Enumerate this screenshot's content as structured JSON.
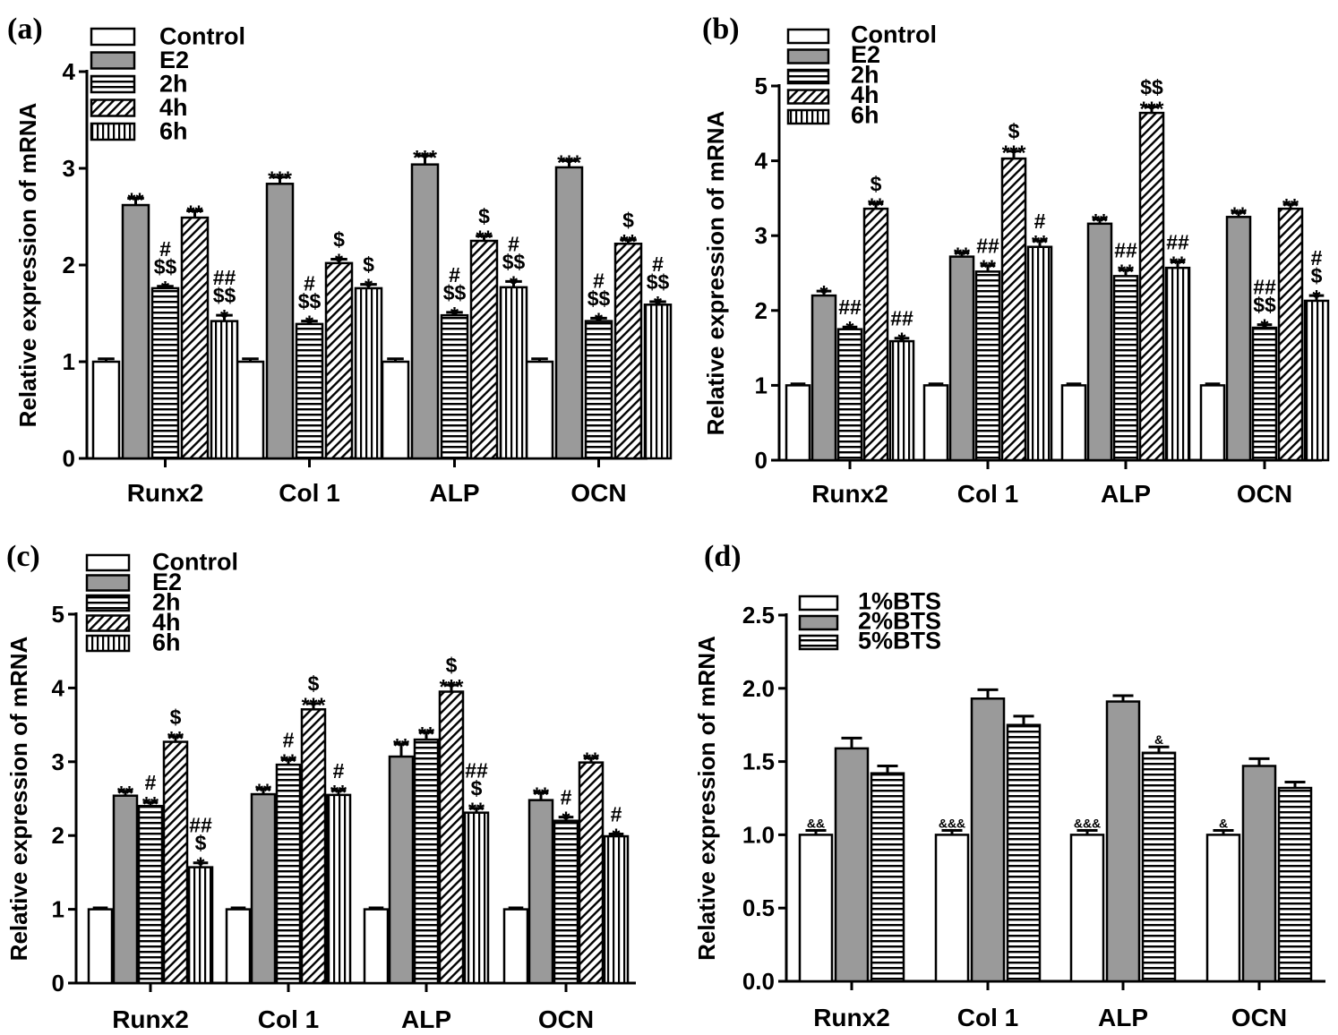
{
  "styles": {
    "Control": "white",
    "E2": "gray",
    "2h": "hlines",
    "4h": "diag",
    "6h": "vlines",
    "1%BTS": "white",
    "2%BTS": "gray",
    "5%BTS": "hlines"
  },
  "colors": {
    "gray": "#9a9a9a",
    "stroke": "#000000",
    "background": "#ffffff"
  },
  "chart_data": [
    {
      "panel": "(a)",
      "type": "bar",
      "ylabel": "Relative expression of mRNA",
      "ylim": [
        0,
        4
      ],
      "yticks": [
        "0",
        "1",
        "2",
        "3",
        "4"
      ],
      "categories": [
        "Runx2",
        "Col 1",
        "ALP",
        "OCN"
      ],
      "series": [
        {
          "name": "Control",
          "values": [
            1.0,
            1.0,
            1.0,
            1.0
          ],
          "errors": [
            0.03,
            0.03,
            0.03,
            0.03
          ],
          "annotations": [
            [],
            [],
            [],
            []
          ]
        },
        {
          "name": "E2",
          "values": [
            2.62,
            2.84,
            3.04,
            3.01
          ],
          "errors": [
            0.07,
            0.07,
            0.09,
            0.07
          ],
          "annotations": [
            [
              "**"
            ],
            [
              "***"
            ],
            [
              "***"
            ],
            [
              "***"
            ]
          ]
        },
        {
          "name": "2h",
          "values": [
            1.76,
            1.39,
            1.48,
            1.42
          ],
          "errors": [
            0.02,
            0.03,
            0.03,
            0.03
          ],
          "annotations": [
            [
              "#",
              "$$",
              "*"
            ],
            [
              "#",
              "$$",
              "*"
            ],
            [
              "#",
              "$$",
              "*"
            ],
            [
              "#",
              "$$",
              "*"
            ]
          ]
        },
        {
          "name": "4h",
          "values": [
            2.49,
            2.02,
            2.25,
            2.22
          ],
          "errors": [
            0.07,
            0.04,
            0.05,
            0.04
          ],
          "annotations": [
            [
              "**"
            ],
            [
              "$",
              "*"
            ],
            [
              "$",
              "**"
            ],
            [
              "$",
              "**"
            ]
          ]
        },
        {
          "name": "6h",
          "values": [
            1.42,
            1.76,
            1.77,
            1.59
          ],
          "errors": [
            0.06,
            0.04,
            0.06,
            0.03
          ],
          "annotations": [
            [
              "##",
              "$$",
              "*"
            ],
            [
              "$",
              "*"
            ],
            [
              "#",
              "$$",
              "*"
            ],
            [
              "#",
              "$$",
              "*"
            ]
          ]
        }
      ]
    },
    {
      "panel": "(b)",
      "type": "bar",
      "ylabel": "Relative expression of mRNA",
      "ylim": [
        0,
        5
      ],
      "yticks": [
        "0",
        "1",
        "2",
        "3",
        "4",
        "5"
      ],
      "categories": [
        "Runx2",
        "Col 1",
        "ALP",
        "OCN"
      ],
      "series": [
        {
          "name": "Control",
          "values": [
            1.0,
            1.0,
            1.0,
            1.0
          ],
          "errors": [
            0.02,
            0.02,
            0.02,
            0.02
          ],
          "annotations": [
            [],
            [],
            [],
            []
          ]
        },
        {
          "name": "E2",
          "values": [
            2.2,
            2.72,
            3.16,
            3.25
          ],
          "errors": [
            0.06,
            0.05,
            0.06,
            0.06
          ],
          "annotations": [
            [
              "*"
            ],
            [
              "**"
            ],
            [
              "**"
            ],
            [
              "**"
            ]
          ]
        },
        {
          "name": "2h",
          "values": [
            1.75,
            2.52,
            2.46,
            1.77
          ],
          "errors": [
            0.03,
            0.08,
            0.08,
            0.04
          ],
          "annotations": [
            [
              "##",
              "*"
            ],
            [
              "##",
              "**"
            ],
            [
              "##",
              "**"
            ],
            [
              "##",
              "$$",
              "*"
            ]
          ]
        },
        {
          "name": "4h",
          "values": [
            3.36,
            4.03,
            4.64,
            3.36
          ],
          "errors": [
            0.07,
            0.1,
            0.08,
            0.06
          ],
          "annotations": [
            [
              "$",
              "**"
            ],
            [
              "$",
              "***"
            ],
            [
              "$$",
              "***"
            ],
            [
              "**"
            ]
          ]
        },
        {
          "name": "6h",
          "values": [
            1.59,
            2.85,
            2.57,
            2.13
          ],
          "errors": [
            0.04,
            0.08,
            0.08,
            0.07
          ],
          "annotations": [
            [
              "##",
              "*"
            ],
            [
              "#",
              "**"
            ],
            [
              "##",
              "**"
            ],
            [
              "#",
              "$",
              "*"
            ]
          ]
        }
      ]
    },
    {
      "panel": "(c)",
      "type": "bar",
      "ylabel": "Relative expression of mRNA",
      "ylim": [
        0,
        5
      ],
      "yticks": [
        "0",
        "1",
        "2",
        "3",
        "4",
        "5"
      ],
      "categories": [
        "Runx2",
        "Col 1",
        "ALP",
        "OCN"
      ],
      "series": [
        {
          "name": "Control",
          "values": [
            1.0,
            1.0,
            1.0,
            1.0
          ],
          "errors": [
            0.02,
            0.02,
            0.02,
            0.02
          ],
          "annotations": [
            [],
            [],
            [],
            []
          ]
        },
        {
          "name": "E2",
          "values": [
            2.54,
            2.56,
            3.07,
            2.48
          ],
          "errors": [
            0.06,
            0.07,
            0.17,
            0.1
          ],
          "annotations": [
            [
              "**"
            ],
            [
              "**"
            ],
            [
              "**"
            ],
            [
              "**"
            ]
          ]
        },
        {
          "name": "2h",
          "values": [
            2.4,
            2.96,
            3.3,
            2.2
          ],
          "errors": [
            0.05,
            0.07,
            0.1,
            0.05
          ],
          "annotations": [
            [
              "#",
              "**"
            ],
            [
              "#",
              "**"
            ],
            [
              "**"
            ],
            [
              "#",
              "*"
            ]
          ]
        },
        {
          "name": "4h",
          "values": [
            3.27,
            3.71,
            3.95,
            2.99
          ],
          "errors": [
            0.07,
            0.08,
            0.09,
            0.06
          ],
          "annotations": [
            [
              "$",
              "**"
            ],
            [
              "$",
              "***"
            ],
            [
              "$",
              "***"
            ],
            [
              "**"
            ]
          ]
        },
        {
          "name": "6h",
          "values": [
            1.57,
            2.55,
            2.31,
            1.99
          ],
          "errors": [
            0.06,
            0.06,
            0.06,
            0.03
          ],
          "annotations": [
            [
              "##",
              "$",
              "*"
            ],
            [
              "#",
              "**"
            ],
            [
              "##",
              "$",
              "**"
            ],
            [
              "#",
              "*"
            ]
          ]
        }
      ]
    },
    {
      "panel": "(d)",
      "type": "bar",
      "ylabel": "Relative expression of mRNA",
      "ylim": [
        0,
        2.5
      ],
      "yticks": [
        "0.0",
        "0.5",
        "1.0",
        "1.5",
        "2.0",
        "2.5"
      ],
      "categories": [
        "Runx2",
        "Col 1",
        "ALP",
        "OCN"
      ],
      "series": [
        {
          "name": "1%BTS",
          "values": [
            1.0,
            1.0,
            1.0,
            1.0
          ],
          "errors": [
            0.03,
            0.03,
            0.03,
            0.03
          ],
          "annotations": [
            [
              "&&"
            ],
            [
              "&&&"
            ],
            [
              "&&&"
            ],
            [
              "&"
            ]
          ]
        },
        {
          "name": "2%BTS",
          "values": [
            1.59,
            1.93,
            1.91,
            1.47
          ],
          "errors": [
            0.07,
            0.06,
            0.04,
            0.05
          ],
          "annotations": [
            [],
            [],
            [],
            []
          ]
        },
        {
          "name": "5%BTS",
          "values": [
            1.42,
            1.75,
            1.56,
            1.32
          ],
          "errors": [
            0.05,
            0.06,
            0.04,
            0.04
          ],
          "annotations": [
            [],
            [],
            [
              "&"
            ],
            []
          ]
        }
      ]
    }
  ]
}
